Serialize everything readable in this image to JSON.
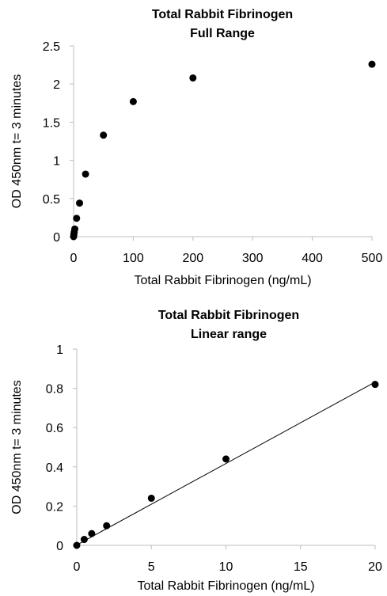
{
  "chart_data": [
    {
      "type": "scatter",
      "title_lines": [
        "Total Rabbit Fibrinogen",
        "Full Range"
      ],
      "xlabel": "Total Rabbit Fibrinogen (ng/mL)",
      "ylabel": "OD 450nm t= 3 minutes",
      "xlim": [
        0,
        500
      ],
      "ylim": [
        0,
        2.5
      ],
      "xticks": [
        0,
        100,
        200,
        300,
        400,
        500
      ],
      "yticks": [
        0,
        0.5,
        1,
        1.5,
        2,
        2.5
      ],
      "xtick_labels": [
        "0",
        "100",
        "200",
        "300",
        "400",
        "500"
      ],
      "ytick_labels": [
        "0",
        "0.5",
        "1",
        "1.5",
        "2",
        "2.5"
      ],
      "grid": false,
      "series": [
        {
          "x": [
            0,
            0.5,
            1,
            2,
            5,
            10,
            20,
            50,
            100,
            200,
            500
          ],
          "y": [
            0,
            0.03,
            0.06,
            0.1,
            0.24,
            0.44,
            0.82,
            1.33,
            1.77,
            2.08,
            2.26
          ]
        }
      ]
    },
    {
      "type": "scatter",
      "title_lines": [
        "Total Rabbit Fibrinogen",
        "Linear range"
      ],
      "xlabel": "Total Rabbit Fibrinogen (ng/mL)",
      "ylabel": "OD 450nm t= 3 minutes",
      "xlim": [
        0,
        20
      ],
      "ylim": [
        0,
        1
      ],
      "xticks": [
        0,
        5,
        10,
        15,
        20
      ],
      "yticks": [
        0,
        0.2,
        0.4,
        0.6,
        0.8,
        1
      ],
      "xtick_labels": [
        "0",
        "5",
        "10",
        "15",
        "20"
      ],
      "ytick_labels": [
        "0",
        "0.2",
        "0.4",
        "0.6",
        "0.8",
        "1"
      ],
      "grid": false,
      "trendline": {
        "type": "linear",
        "x": [
          0,
          20
        ],
        "y": [
          0.002,
          0.832
        ]
      },
      "series": [
        {
          "x": [
            0,
            0.5,
            1,
            2,
            5,
            10,
            20
          ],
          "y": [
            0,
            0.03,
            0.06,
            0.1,
            0.24,
            0.44,
            0.82
          ]
        }
      ]
    }
  ]
}
